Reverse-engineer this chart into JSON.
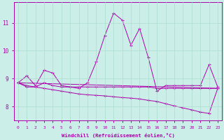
{
  "xlabel": "Windchill (Refroidissement éolien,°C)",
  "background_color": "#cceee8",
  "grid_color": "#aaddcc",
  "line_color": "#aa00aa",
  "marker": "+",
  "xlim": [
    -0.5,
    23.5
  ],
  "ylim": [
    7.5,
    11.75
  ],
  "yticks": [
    8,
    9,
    10,
    11
  ],
  "xticks": [
    0,
    1,
    2,
    3,
    4,
    5,
    6,
    7,
    8,
    9,
    10,
    11,
    12,
    13,
    14,
    15,
    16,
    17,
    18,
    19,
    20,
    21,
    22,
    23
  ],
  "line1_x": [
    0,
    1,
    2,
    3,
    4,
    5,
    6,
    7,
    8,
    9,
    10,
    11,
    12,
    13,
    14,
    15,
    16,
    17,
    18,
    19,
    20,
    21,
    22,
    23
  ],
  "line1_y": [
    8.85,
    9.1,
    8.75,
    9.3,
    9.2,
    8.75,
    8.7,
    8.65,
    8.85,
    9.6,
    10.55,
    11.35,
    11.1,
    10.2,
    10.8,
    9.75,
    8.55,
    8.75,
    8.75,
    8.75,
    8.75,
    8.75,
    9.5,
    8.7
  ],
  "line2_x": [
    0,
    1,
    2,
    3,
    4,
    5,
    6,
    7,
    8,
    9,
    10,
    11,
    12,
    13,
    14,
    15,
    16,
    17,
    18,
    19,
    20,
    21,
    22,
    23
  ],
  "line2_y": [
    8.85,
    8.7,
    8.7,
    8.85,
    8.75,
    8.7,
    8.7,
    8.7,
    8.7,
    8.7,
    8.7,
    8.7,
    8.7,
    8.7,
    8.7,
    8.7,
    8.65,
    8.65,
    8.65,
    8.65,
    8.65,
    8.65,
    8.65,
    8.65
  ],
  "line3_x": [
    0,
    1,
    2,
    3,
    4,
    5,
    6,
    7,
    8,
    9,
    10,
    11,
    12,
    13,
    14,
    15,
    16,
    17,
    18,
    19,
    20,
    21,
    22,
    23
  ],
  "line3_y": [
    8.85,
    8.75,
    8.7,
    8.65,
    8.6,
    8.55,
    8.5,
    8.45,
    8.42,
    8.4,
    8.38,
    8.35,
    8.32,
    8.3,
    8.27,
    8.22,
    8.18,
    8.1,
    8.02,
    7.95,
    7.88,
    7.8,
    7.75,
    8.65
  ],
  "line4_x": [
    0,
    23
  ],
  "line4_y": [
    8.85,
    8.65
  ]
}
